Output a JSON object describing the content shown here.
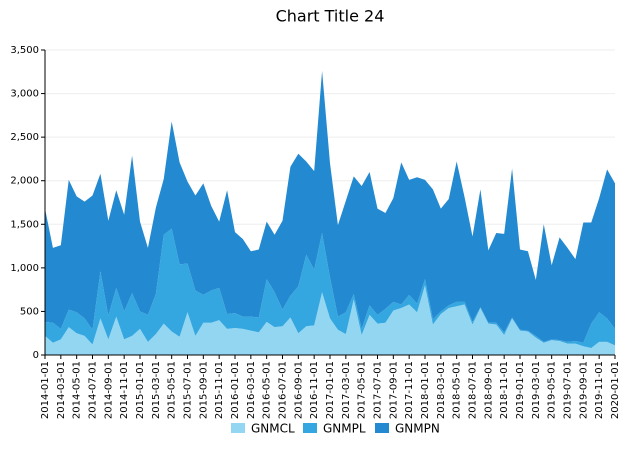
{
  "chart_data": {
    "type": "stacked-area",
    "title": "Chart Title 24",
    "categories": [
      "2014-01-01",
      null,
      "2014-03-01",
      null,
      "2014-05-01",
      null,
      "2014-07-01",
      null,
      "2014-09-01",
      null,
      "2014-11-01",
      null,
      "2015-01-01",
      null,
      "2015-03-01",
      null,
      "2015-05-01",
      null,
      "2015-07-01",
      null,
      "2015-09-01",
      null,
      "2015-11-01",
      null,
      "2016-01-01",
      null,
      "2016-03-01",
      null,
      "2016-05-01",
      null,
      "2016-07-01",
      null,
      "2016-09-01",
      null,
      "2016-11-01",
      null,
      "2017-01-01",
      null,
      "2017-03-01",
      null,
      "2017-05-01",
      null,
      "2017-07-01",
      null,
      "2017-09-01",
      null,
      "2017-11-01",
      null,
      "2018-01-01",
      null,
      "2018-03-01",
      null,
      "2018-05-01",
      null,
      "2018-07-01",
      null,
      "2018-09-01",
      null,
      "2018-11-01",
      null,
      "2019-01-01",
      null,
      "2019-03-01",
      null,
      "2019-05-01",
      null,
      "2019-07-01",
      null,
      "2019-09-01",
      null,
      "2019-11-01",
      null,
      "2020-01-01"
    ],
    "series": [
      {
        "name": "GNMCL",
        "color": "#93d6f2",
        "values": [
          220,
          140,
          180,
          320,
          250,
          220,
          120,
          420,
          180,
          440,
          180,
          220,
          300,
          150,
          240,
          360,
          270,
          210,
          490,
          220,
          370,
          370,
          400,
          300,
          310,
          300,
          280,
          260,
          380,
          320,
          330,
          430,
          250,
          330,
          340,
          720,
          420,
          290,
          240,
          640,
          230,
          460,
          360,
          370,
          510,
          540,
          580,
          490,
          800,
          350,
          470,
          540,
          560,
          580,
          350,
          540,
          360,
          350,
          230,
          420,
          280,
          270,
          200,
          140,
          170,
          160,
          130,
          130,
          100,
          80,
          150,
          150,
          110
        ]
      },
      {
        "name": "GNMPL",
        "color": "#35a7e0",
        "values": [
          160,
          230,
          120,
          200,
          240,
          200,
          170,
          540,
          270,
          330,
          320,
          490,
          200,
          310,
          460,
          1020,
          1180,
          830,
          560,
          520,
          320,
          370,
          370,
          170,
          170,
          140,
          160,
          170,
          490,
          400,
          190,
          250,
          540,
          820,
          640,
          680,
          470,
          150,
          250,
          60,
          70,
          110,
          100,
          160,
          100,
          40,
          110,
          100,
          70,
          60,
          30,
          30,
          50,
          30,
          30,
          10,
          10,
          20,
          30,
          10,
          10,
          10,
          20,
          10,
          10,
          10,
          20,
          30,
          40,
          280,
          340,
          270,
          190
        ]
      },
      {
        "name": "GNMPN",
        "color": "#2389d0",
        "values": [
          1300,
          860,
          960,
          1490,
          1330,
          1340,
          1540,
          1120,
          1090,
          1120,
          1110,
          1580,
          1030,
          770,
          990,
          640,
          1230,
          1170,
          940,
          1090,
          1280,
          970,
          760,
          1420,
          930,
          890,
          750,
          780,
          660,
          660,
          1020,
          1480,
          1520,
          1070,
          1130,
          1860,
          1310,
          1050,
          1280,
          1350,
          1640,
          1530,
          1220,
          1100,
          1190,
          1630,
          1320,
          1450,
          1140,
          1490,
          1180,
          1220,
          1610,
          1200,
          980,
          1350,
          830,
          1030,
          1130,
          1710,
          920,
          910,
          640,
          1350,
          850,
          1180,
          1080,
          940,
          1380,
          1160,
          1310,
          1710,
          1670
        ]
      }
    ],
    "ylim": [
      0,
      3500
    ],
    "yticks": [
      0,
      500,
      {
        "value": 1000,
        "label": "1,000"
      },
      {
        "value": 1500,
        "label": "1,500"
      },
      {
        "value": 2000,
        "label": "2,000"
      },
      {
        "value": 2500,
        "label": "2,500"
      },
      {
        "value": 3000,
        "label": "3,000"
      },
      {
        "value": 3500,
        "label": "3,500"
      }
    ],
    "grid": true
  }
}
